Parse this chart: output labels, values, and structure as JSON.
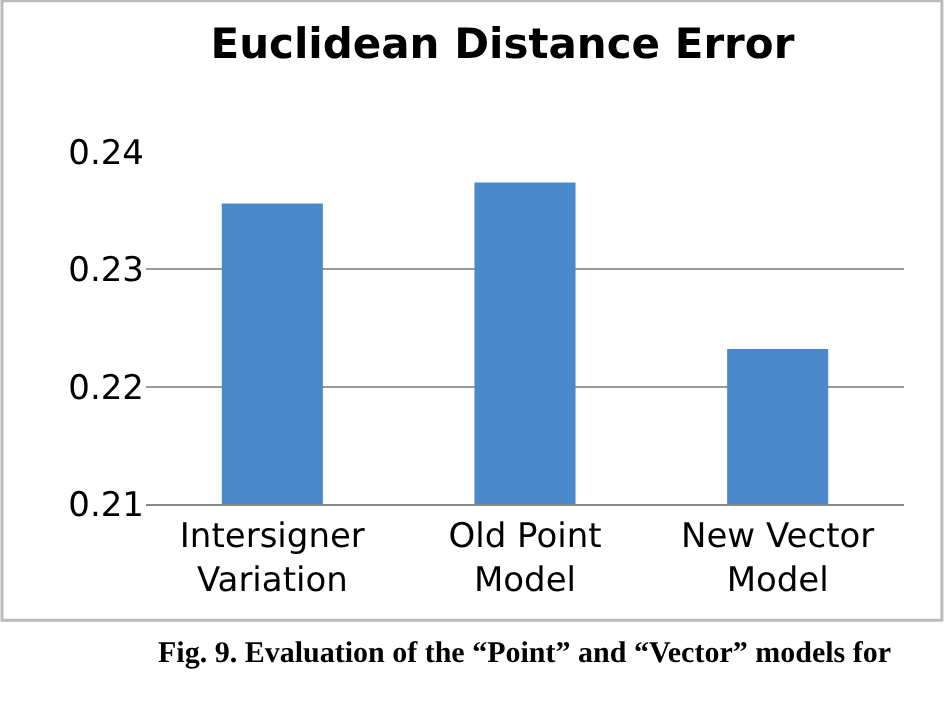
{
  "chart_data": {
    "type": "bar",
    "title": "Euclidean Distance Error",
    "categories": [
      "Intersigner\nVariation",
      "Old Point\nModel",
      "New Vector\nModel"
    ],
    "values": [
      0.2356,
      0.2374,
      0.2232
    ],
    "color": "#4a88cc",
    "ylim": [
      0.21,
      0.24
    ],
    "yticks": [
      0.21,
      0.22,
      0.23,
      0.24
    ],
    "grid": "y",
    "annotations": [
      "Fig. 9. Evaluation of the “Point” and “Vector” models for"
    ]
  }
}
